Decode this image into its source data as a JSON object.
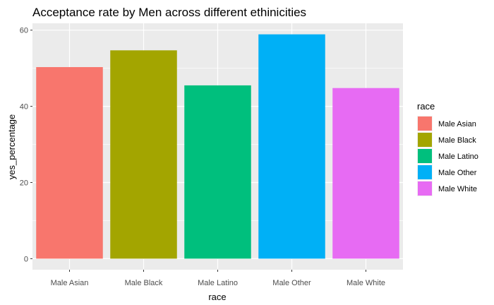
{
  "chart_data": {
    "type": "bar",
    "title": "Acceptance rate by Men across different ethinicities",
    "xlabel": "race",
    "ylabel": "yes_percentage",
    "categories": [
      "Male Asian",
      "Male Black",
      "Male Latino",
      "Male Other",
      "Male White"
    ],
    "values": [
      50.3,
      54.7,
      45.5,
      58.9,
      44.8
    ],
    "colors": [
      "#F8766D",
      "#A3A500",
      "#00BF7D",
      "#00B0F6",
      "#E76BF3"
    ],
    "ylim": [
      -2.9,
      61.8
    ],
    "yticks": [
      0,
      20,
      40,
      60
    ],
    "grid": true,
    "legend": {
      "title": "race",
      "placement": "right",
      "entries": [
        "Male Asian",
        "Male Black",
        "Male Latino",
        "Male Other",
        "Male White"
      ]
    }
  }
}
